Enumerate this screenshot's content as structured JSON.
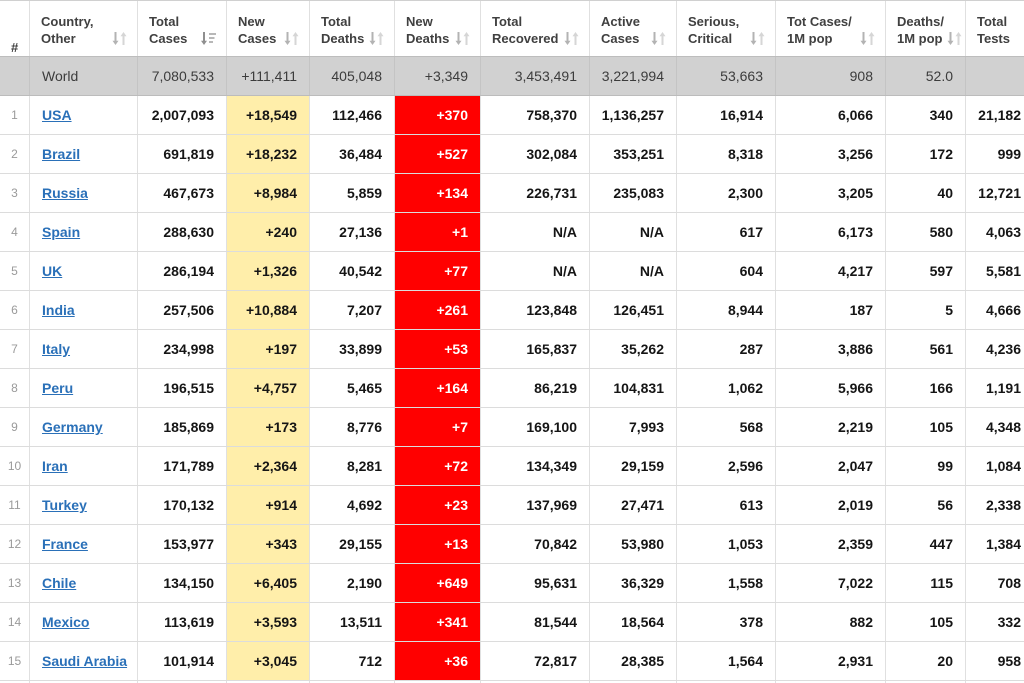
{
  "colors": {
    "new_cases_highlight": "#FFEEAA",
    "new_deaths_highlight": "#FF0000",
    "new_deaths_text": "#FFFFFF",
    "world_row_background": "#D1D1D1",
    "country_link": "#2A70B8",
    "header_text": "#404040"
  },
  "table": {
    "sorted_column": "total_cases",
    "sort_direction": "descending",
    "columns": [
      {
        "key": "rank",
        "line1": "",
        "line2": "#",
        "sort": "none",
        "align": "center"
      },
      {
        "key": "country",
        "line1": "Country,",
        "line2": "Other",
        "sort": "both",
        "align": "left"
      },
      {
        "key": "total_cases",
        "line1": "Total",
        "line2": "Cases",
        "sort": "desc",
        "align": "right"
      },
      {
        "key": "new_cases",
        "line1": "New",
        "line2": "Cases",
        "sort": "both",
        "align": "right",
        "highlight": "yellow"
      },
      {
        "key": "total_deaths",
        "line1": "Total",
        "line2": "Deaths",
        "sort": "both",
        "align": "right"
      },
      {
        "key": "new_deaths",
        "line1": "New",
        "line2": "Deaths",
        "sort": "both",
        "align": "right",
        "highlight": "red"
      },
      {
        "key": "total_recovered",
        "line1": "Total",
        "line2": "Recovered",
        "sort": "both",
        "align": "right"
      },
      {
        "key": "active_cases",
        "line1": "Active",
        "line2": "Cases",
        "sort": "both",
        "align": "right"
      },
      {
        "key": "serious_critical",
        "line1": "Serious,",
        "line2": "Critical",
        "sort": "both",
        "align": "right"
      },
      {
        "key": "cases_1m",
        "line1": "Tot Cases/",
        "line2": "1M pop",
        "sort": "both",
        "align": "right"
      },
      {
        "key": "deaths_1m",
        "line1": "Deaths/",
        "line2": "1M pop",
        "sort": "both",
        "align": "right"
      },
      {
        "key": "tests",
        "line1": "Total",
        "line2": "Tests",
        "sort": "both",
        "align": "right"
      }
    ],
    "world_row": {
      "rank": "",
      "country": "World",
      "total_cases": "7,080,533",
      "new_cases": "+111,411",
      "total_deaths": "405,048",
      "new_deaths": "+3,349",
      "total_recovered": "3,453,491",
      "active_cases": "3,221,994",
      "serious_critical": "53,663",
      "cases_1m": "908",
      "deaths_1m": "52.0",
      "tests": ""
    },
    "rows": [
      {
        "rank": "1",
        "country": "USA",
        "total_cases": "2,007,093",
        "new_cases": "+18,549",
        "total_deaths": "112,466",
        "new_deaths": "+370",
        "total_recovered": "758,370",
        "active_cases": "1,136,257",
        "serious_critical": "16,914",
        "cases_1m": "6,066",
        "deaths_1m": "340",
        "tests": "21,182"
      },
      {
        "rank": "2",
        "country": "Brazil",
        "total_cases": "691,819",
        "new_cases": "+18,232",
        "total_deaths": "36,484",
        "new_deaths": "+527",
        "total_recovered": "302,084",
        "active_cases": "353,251",
        "serious_critical": "8,318",
        "cases_1m": "3,256",
        "deaths_1m": "172",
        "tests": "999"
      },
      {
        "rank": "3",
        "country": "Russia",
        "total_cases": "467,673",
        "new_cases": "+8,984",
        "total_deaths": "5,859",
        "new_deaths": "+134",
        "total_recovered": "226,731",
        "active_cases": "235,083",
        "serious_critical": "2,300",
        "cases_1m": "3,205",
        "deaths_1m": "40",
        "tests": "12,721"
      },
      {
        "rank": "4",
        "country": "Spain",
        "total_cases": "288,630",
        "new_cases": "+240",
        "total_deaths": "27,136",
        "new_deaths": "+1",
        "total_recovered": "N/A",
        "active_cases": "N/A",
        "serious_critical": "617",
        "cases_1m": "6,173",
        "deaths_1m": "580",
        "tests": "4,063"
      },
      {
        "rank": "5",
        "country": "UK",
        "total_cases": "286,194",
        "new_cases": "+1,326",
        "total_deaths": "40,542",
        "new_deaths": "+77",
        "total_recovered": "N/A",
        "active_cases": "N/A",
        "serious_critical": "604",
        "cases_1m": "4,217",
        "deaths_1m": "597",
        "tests": "5,581"
      },
      {
        "rank": "6",
        "country": "India",
        "total_cases": "257,506",
        "new_cases": "+10,884",
        "total_deaths": "7,207",
        "new_deaths": "+261",
        "total_recovered": "123,848",
        "active_cases": "126,451",
        "serious_critical": "8,944",
        "cases_1m": "187",
        "deaths_1m": "5",
        "tests": "4,666"
      },
      {
        "rank": "7",
        "country": "Italy",
        "total_cases": "234,998",
        "new_cases": "+197",
        "total_deaths": "33,899",
        "new_deaths": "+53",
        "total_recovered": "165,837",
        "active_cases": "35,262",
        "serious_critical": "287",
        "cases_1m": "3,886",
        "deaths_1m": "561",
        "tests": "4,236"
      },
      {
        "rank": "8",
        "country": "Peru",
        "total_cases": "196,515",
        "new_cases": "+4,757",
        "total_deaths": "5,465",
        "new_deaths": "+164",
        "total_recovered": "86,219",
        "active_cases": "104,831",
        "serious_critical": "1,062",
        "cases_1m": "5,966",
        "deaths_1m": "166",
        "tests": "1,191"
      },
      {
        "rank": "9",
        "country": "Germany",
        "total_cases": "185,869",
        "new_cases": "+173",
        "total_deaths": "8,776",
        "new_deaths": "+7",
        "total_recovered": "169,100",
        "active_cases": "7,993",
        "serious_critical": "568",
        "cases_1m": "2,219",
        "deaths_1m": "105",
        "tests": "4,348"
      },
      {
        "rank": "10",
        "country": "Iran",
        "total_cases": "171,789",
        "new_cases": "+2,364",
        "total_deaths": "8,281",
        "new_deaths": "+72",
        "total_recovered": "134,349",
        "active_cases": "29,159",
        "serious_critical": "2,596",
        "cases_1m": "2,047",
        "deaths_1m": "99",
        "tests": "1,084"
      },
      {
        "rank": "11",
        "country": "Turkey",
        "total_cases": "170,132",
        "new_cases": "+914",
        "total_deaths": "4,692",
        "new_deaths": "+23",
        "total_recovered": "137,969",
        "active_cases": "27,471",
        "serious_critical": "613",
        "cases_1m": "2,019",
        "deaths_1m": "56",
        "tests": "2,338"
      },
      {
        "rank": "12",
        "country": "France",
        "total_cases": "153,977",
        "new_cases": "+343",
        "total_deaths": "29,155",
        "new_deaths": "+13",
        "total_recovered": "70,842",
        "active_cases": "53,980",
        "serious_critical": "1,053",
        "cases_1m": "2,359",
        "deaths_1m": "447",
        "tests": "1,384"
      },
      {
        "rank": "13",
        "country": "Chile",
        "total_cases": "134,150",
        "new_cases": "+6,405",
        "total_deaths": "2,190",
        "new_deaths": "+649",
        "total_recovered": "95,631",
        "active_cases": "36,329",
        "serious_critical": "1,558",
        "cases_1m": "7,022",
        "deaths_1m": "115",
        "tests": "708"
      },
      {
        "rank": "14",
        "country": "Mexico",
        "total_cases": "113,619",
        "new_cases": "+3,593",
        "total_deaths": "13,511",
        "new_deaths": "+341",
        "total_recovered": "81,544",
        "active_cases": "18,564",
        "serious_critical": "378",
        "cases_1m": "882",
        "deaths_1m": "105",
        "tests": "332"
      },
      {
        "rank": "15",
        "country": "Saudi Arabia",
        "total_cases": "101,914",
        "new_cases": "+3,045",
        "total_deaths": "712",
        "new_deaths": "+36",
        "total_recovered": "72,817",
        "active_cases": "28,385",
        "serious_critical": "1,564",
        "cases_1m": "2,931",
        "deaths_1m": "20",
        "tests": "958"
      }
    ]
  }
}
